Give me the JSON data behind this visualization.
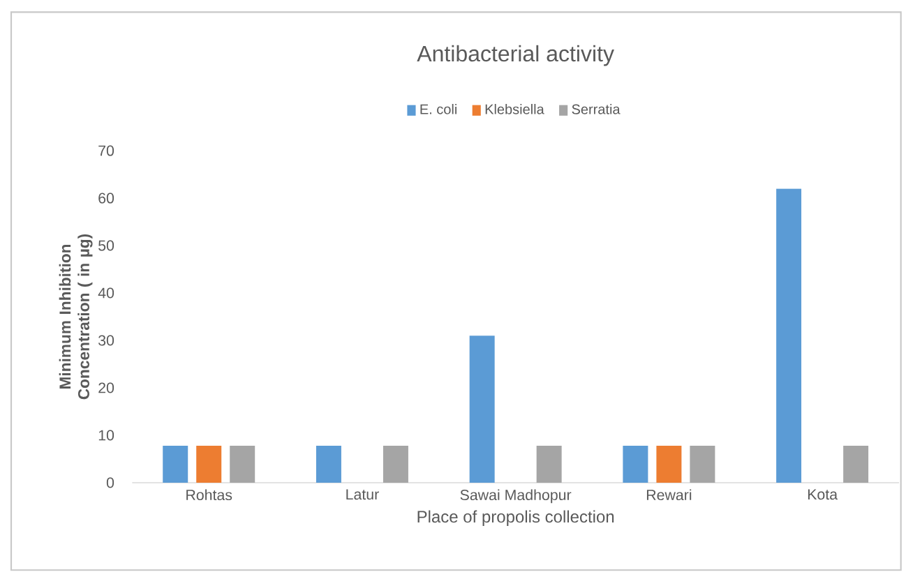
{
  "chart_data": {
    "type": "bar",
    "title": "Antibacterial activity",
    "xlabel": "Place of propolis collection",
    "ylabel": "Minimum Inhibition Concentration ( in µg)",
    "categories": [
      "Rohtas",
      "Latur",
      "Sawai Madhopur",
      "Rewari",
      "Kota"
    ],
    "series": [
      {
        "name": "E. coli",
        "color": "#5b9bd5",
        "values": [
          7.8,
          7.8,
          31,
          7.8,
          62
        ]
      },
      {
        "name": "Klebsiella",
        "color": "#ed7d31",
        "values": [
          7.8,
          null,
          null,
          7.8,
          null
        ]
      },
      {
        "name": "Serratia",
        "color": "#a5a5a5",
        "values": [
          7.8,
          7.8,
          7.8,
          7.8,
          7.8
        ]
      }
    ],
    "ylim": [
      0,
      70
    ],
    "yticks": [
      0,
      10,
      20,
      30,
      40,
      50,
      60,
      70
    ],
    "legend": "top",
    "grid": false
  }
}
